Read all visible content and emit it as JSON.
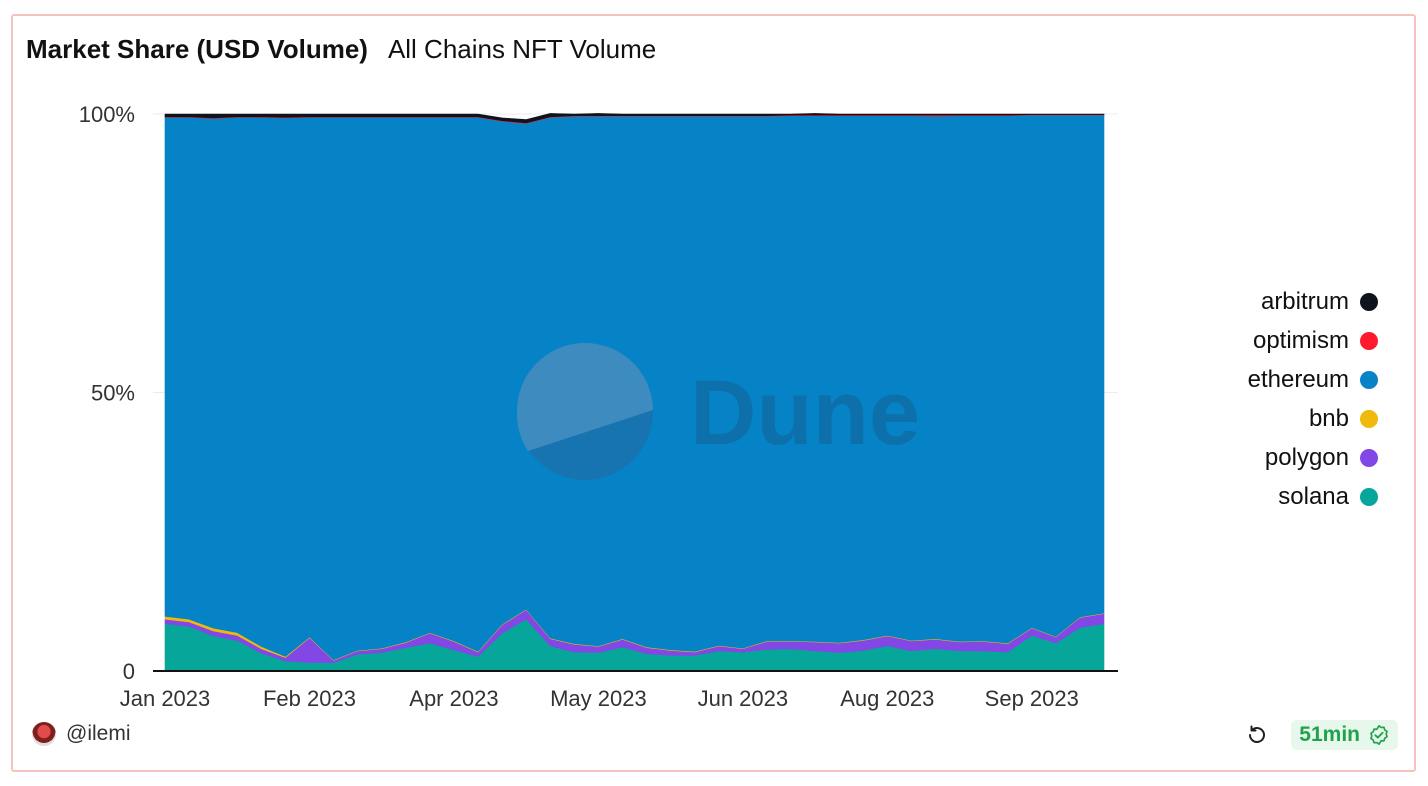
{
  "header": {
    "title": "Market Share (USD Volume)",
    "subtitle": "All Chains NFT Volume"
  },
  "footer": {
    "username": "@ilemi",
    "age_badge": "51min"
  },
  "watermark": "Dune",
  "colors": {
    "arbitrum": "#0f141c",
    "optimism": "#ff1a2e",
    "ethereum": "#0583c6",
    "bnb": "#f0b90b",
    "polygon": "#8247e5",
    "solana": "#06a69a",
    "accent_green": "#1fa34a"
  },
  "legend": [
    {
      "name": "arbitrum",
      "color": "#0f141c"
    },
    {
      "name": "optimism",
      "color": "#ff1a2e"
    },
    {
      "name": "ethereum",
      "color": "#0583c6"
    },
    {
      "name": "bnb",
      "color": "#f0b90b"
    },
    {
      "name": "polygon",
      "color": "#8247e5"
    },
    {
      "name": "solana",
      "color": "#06a69a"
    }
  ],
  "chart_data": {
    "type": "area",
    "stacked": true,
    "percent": true,
    "ylim": [
      0,
      100
    ],
    "yticks": [
      0,
      50,
      100
    ],
    "ytick_labels": [
      "0",
      "50%",
      "100%"
    ],
    "xticks": [
      {
        "label": "Jan 2023",
        "x": 1
      },
      {
        "label": "Feb 2023",
        "x": 7
      },
      {
        "label": "Apr 2023",
        "x": 13
      },
      {
        "label": "May 2023",
        "x": 19
      },
      {
        "label": "Jun 2023",
        "x": 25
      },
      {
        "label": "Aug 2023",
        "x": 31
      },
      {
        "label": "Sep 2023",
        "x": 37
      }
    ],
    "x": [
      1,
      2,
      3,
      4,
      5,
      6,
      7,
      8,
      9,
      10,
      11,
      12,
      13,
      14,
      15,
      16,
      17,
      18,
      19,
      20,
      21,
      22,
      23,
      24,
      25,
      26,
      27,
      28,
      29,
      30,
      31,
      32,
      33,
      34,
      35,
      36,
      37,
      38,
      39,
      40
    ],
    "series": [
      {
        "name": "solana",
        "values": [
          8.5,
          8.0,
          6.3,
          5.5,
          3.2,
          1.8,
          1.5,
          1.5,
          3.0,
          3.3,
          4.2,
          5.0,
          3.8,
          2.6,
          6.8,
          9.3,
          4.5,
          3.4,
          3.3,
          4.3,
          3.1,
          2.8,
          2.8,
          3.6,
          3.4,
          3.9,
          4.0,
          3.6,
          3.3,
          3.7,
          4.5,
          3.6,
          4.0,
          3.6,
          3.6,
          3.4,
          6.4,
          5.0,
          7.8,
          8.5
        ]
      },
      {
        "name": "polygon",
        "values": [
          0.8,
          0.8,
          0.9,
          0.9,
          0.8,
          0.6,
          4.5,
          0.4,
          0.6,
          0.7,
          0.9,
          1.8,
          1.5,
          0.8,
          1.5,
          1.7,
          1.3,
          1.4,
          1.1,
          1.4,
          1.1,
          0.9,
          0.6,
          0.9,
          0.6,
          1.4,
          1.3,
          1.6,
          1.7,
          1.8,
          1.8,
          1.8,
          1.7,
          1.6,
          1.7,
          1.5,
          1.3,
          1.1,
          1.8,
          1.8
        ]
      },
      {
        "name": "bnb",
        "values": [
          0.5,
          0.5,
          0.5,
          0.5,
          0.4,
          0.2,
          0.1,
          0.1,
          0.1,
          0.1,
          0.1,
          0.1,
          0.1,
          0.1,
          0.1,
          0.1,
          0.1,
          0.1,
          0.1,
          0.1,
          0.1,
          0.1,
          0.1,
          0.1,
          0.1,
          0.1,
          0.1,
          0.1,
          0.1,
          0.1,
          0.1,
          0.1,
          0.1,
          0.1,
          0.1,
          0.1,
          0.1,
          0.1,
          0.1,
          0.1
        ]
      },
      {
        "name": "ethereum",
        "values": [
          89.6,
          90.1,
          91.5,
          92.5,
          95.0,
          96.7,
          93.3,
          97.4,
          95.7,
          95.3,
          94.2,
          92.5,
          94.0,
          95.9,
          90.3,
          87.2,
          93.5,
          94.7,
          95.1,
          93.8,
          95.3,
          95.8,
          96.1,
          95.0,
          95.5,
          94.2,
          94.3,
          94.4,
          94.6,
          94.1,
          93.3,
          94.2,
          93.8,
          94.4,
          94.3,
          94.7,
          92.0,
          93.6,
          90.1,
          89.4
        ]
      },
      {
        "name": "optimism",
        "values": [
          0.1,
          0.1,
          0.1,
          0.1,
          0.1,
          0.1,
          0.1,
          0.1,
          0.1,
          0.1,
          0.1,
          0.1,
          0.1,
          0.1,
          0.1,
          0.1,
          0.1,
          0.1,
          0.1,
          0.1,
          0.1,
          0.1,
          0.1,
          0.1,
          0.1,
          0.1,
          0.1,
          0.1,
          0.1,
          0.1,
          0.1,
          0.1,
          0.2,
          0.1,
          0.1,
          0.1,
          0.1,
          0.1,
          0.1,
          0.1
        ]
      },
      {
        "name": "arbitrum",
        "values": [
          0.5,
          0.5,
          0.7,
          0.5,
          0.5,
          0.6,
          0.5,
          0.5,
          0.5,
          0.5,
          0.5,
          0.5,
          0.5,
          0.5,
          0.5,
          0.6,
          0.6,
          0.3,
          0.4,
          0.3,
          0.3,
          0.3,
          0.3,
          0.3,
          0.3,
          0.3,
          0.2,
          0.3,
          0.2,
          0.2,
          0.2,
          0.2,
          0.2,
          0.2,
          0.2,
          0.2,
          0.1,
          0.1,
          0.1,
          0.1
        ]
      }
    ]
  }
}
